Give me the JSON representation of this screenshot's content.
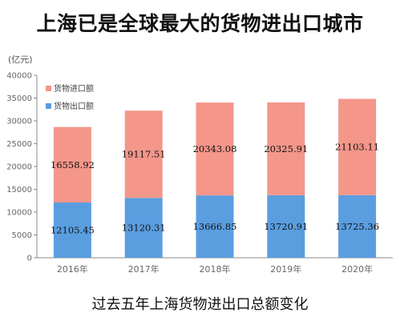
{
  "title": "上海已是全球最大的货物进出口城市",
  "caption": "过去五年上海货物进出口总额变化",
  "colors": {
    "import": "#f4968a",
    "export": "#5a9ee0",
    "axis": "#888888"
  },
  "chart_data": {
    "type": "bar",
    "stacked": true,
    "unit": "(亿元)",
    "categories": [
      "2016年",
      "2017年",
      "2018年",
      "2019年",
      "2020年"
    ],
    "series": [
      {
        "name": "货物出口额",
        "values": [
          12105.45,
          13120.31,
          13666.85,
          13720.91,
          13725.36
        ]
      },
      {
        "name": "货物进口额",
        "values": [
          16558.92,
          19117.51,
          20343.08,
          20325.91,
          21103.11
        ]
      }
    ],
    "ylim": [
      0,
      40000
    ],
    "yticks": [
      0,
      5000,
      10000,
      15000,
      20000,
      25000,
      30000,
      35000,
      40000
    ],
    "legend": "top-left",
    "grid": false
  }
}
